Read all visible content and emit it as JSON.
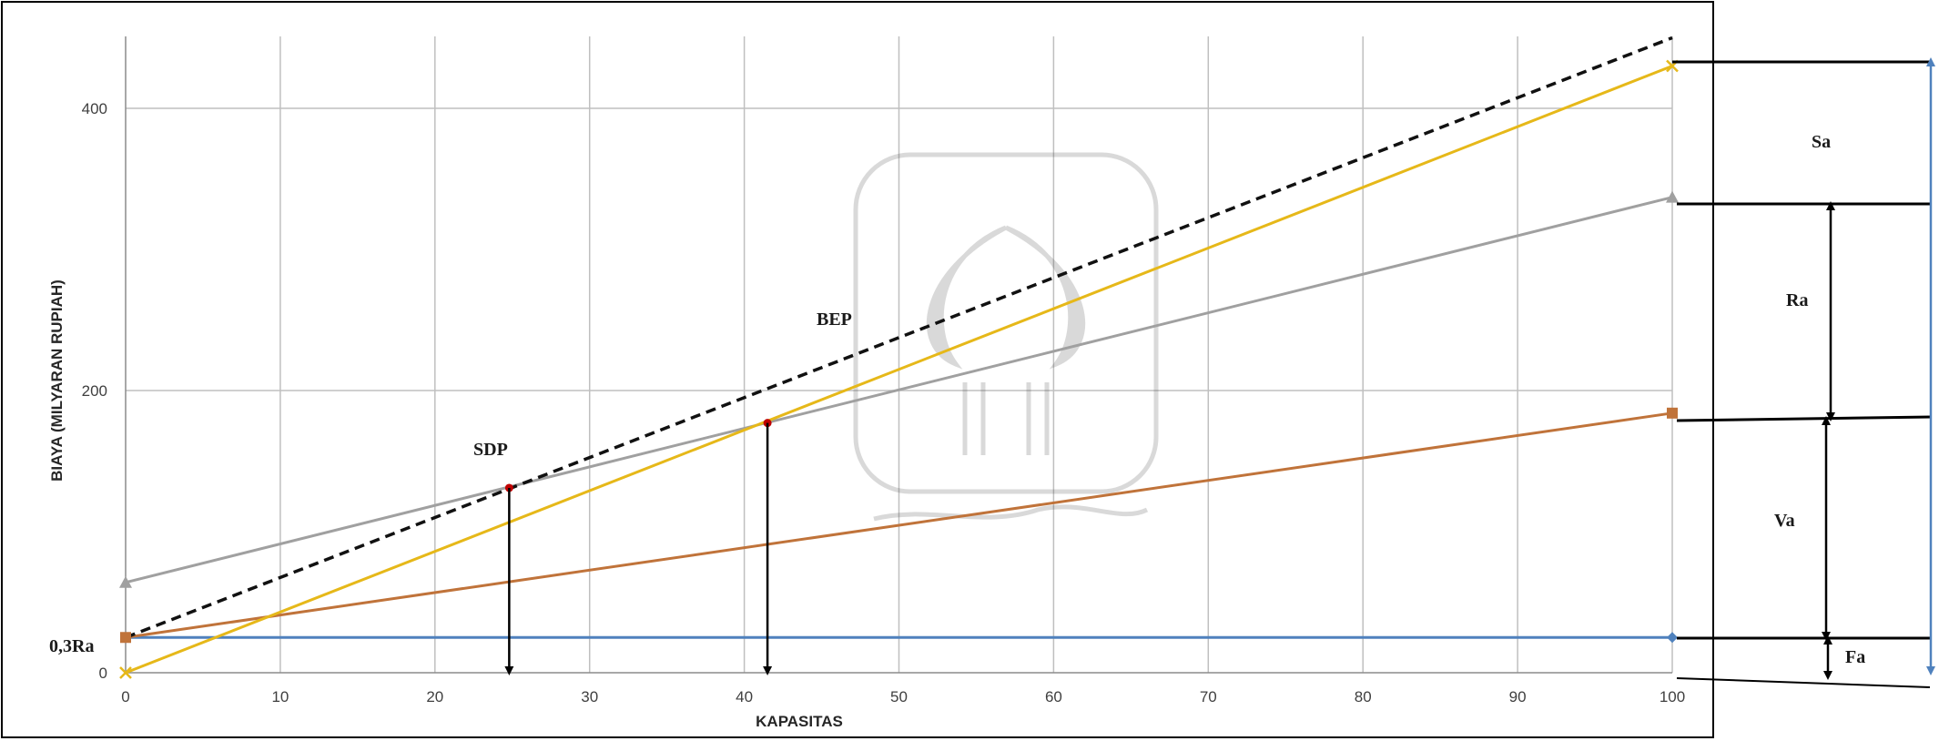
{
  "chart_data": {
    "type": "line",
    "title": "",
    "xlabel": "KAPASITAS",
    "ylabel": "BIAYA (MILYARAN RUPIAH)",
    "xlim": [
      0,
      100
    ],
    "ylim": [
      0,
      400
    ],
    "x_ticks": [
      0,
      10,
      20,
      30,
      40,
      50,
      60,
      70,
      80,
      90,
      100
    ],
    "y_ticks": [
      0,
      200,
      400
    ],
    "grid": true,
    "series": [
      {
        "name": "",
        "color": "#4f81bd",
        "marker": "diamond",
        "x": [
          0,
          100
        ],
        "y": [
          25,
          25
        ]
      },
      {
        "name": "",
        "color": "#c0733a",
        "marker": "square",
        "x": [
          0,
          100
        ],
        "y": [
          25,
          184
        ]
      },
      {
        "name": "",
        "color": "#a0a0a0",
        "marker": "triangle",
        "x": [
          0,
          100
        ],
        "y": [
          64,
          337
        ]
      },
      {
        "name": "",
        "color": "#e6b819",
        "marker": "x",
        "x": [
          0,
          100
        ],
        "y": [
          0,
          430
        ]
      },
      {
        "name": "",
        "color": "#111111",
        "dashed": true,
        "marker": "none",
        "x": [
          0,
          100
        ],
        "y": [
          25,
          450
        ]
      }
    ],
    "points": [
      {
        "label": "SDP",
        "x": 24.8,
        "y": 131
      },
      {
        "label": "BEP",
        "x": 41.5,
        "y": 177
      }
    ],
    "annotations": {
      "left_label": "0,3Ra",
      "brackets": [
        "Sa",
        "Ra",
        "Va",
        "Fa"
      ]
    }
  }
}
